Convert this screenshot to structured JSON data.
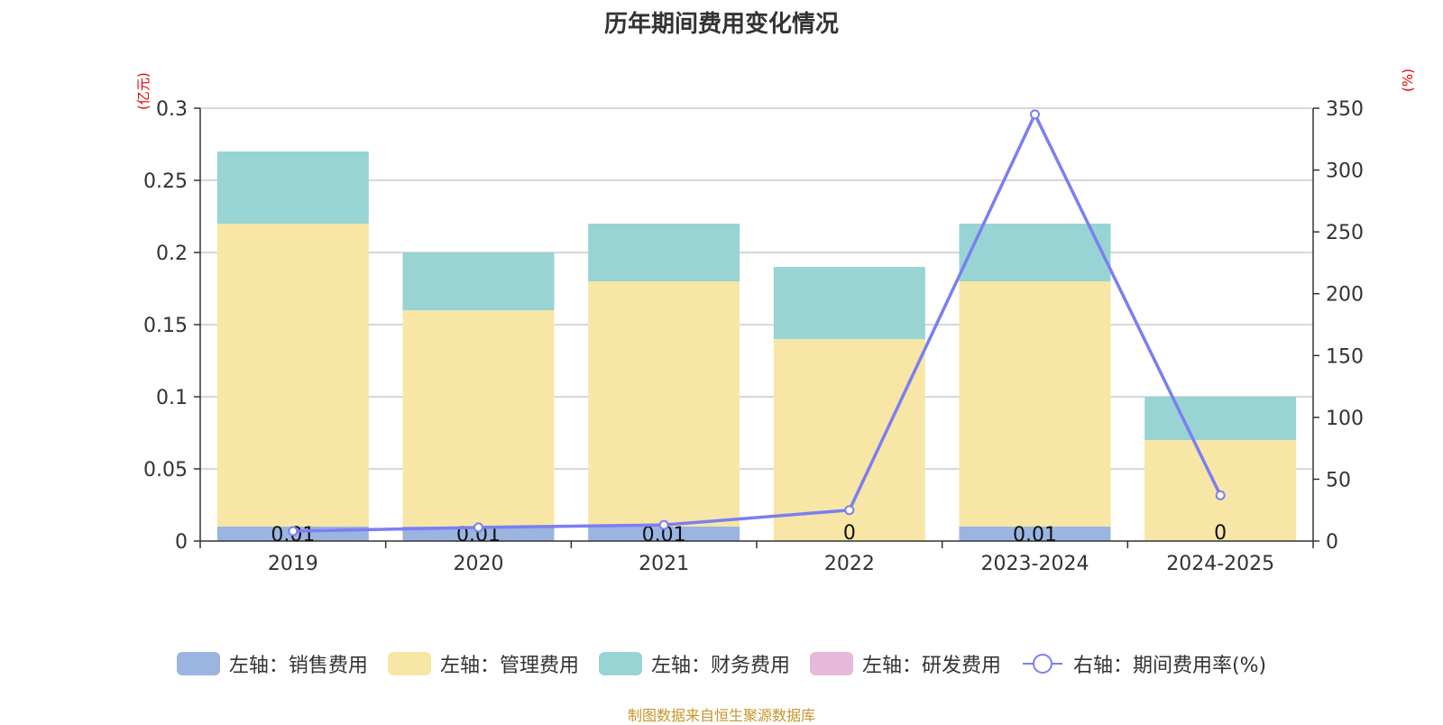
{
  "chart_data": {
    "type": "bar",
    "title": "历年期间费用变化情况",
    "categories": [
      "2019",
      "2020",
      "2021",
      "2022",
      "2023-2024",
      "2024-2025"
    ],
    "left_axis": {
      "unit": "(亿元)",
      "ylim": [
        0,
        0.3
      ],
      "ticks": [
        "0",
        "0.05",
        "0.1",
        "0.15",
        "0.2",
        "0.25",
        "0.3"
      ]
    },
    "right_axis": {
      "unit": "(%)",
      "ylim": [
        0,
        350
      ],
      "ticks": [
        "0",
        "50",
        "100",
        "150",
        "200",
        "250",
        "300",
        "350"
      ]
    },
    "stacked": true,
    "series": [
      {
        "name": "左轴：销售费用",
        "color": "#9bb4e0",
        "values": [
          0.01,
          0.01,
          0.01,
          0,
          0.01,
          0
        ],
        "labels": [
          "0.01",
          "0.01",
          "0.01",
          "0",
          "0.01",
          "0"
        ]
      },
      {
        "name": "左轴：管理费用",
        "color": "#f7e6a6",
        "values": [
          0.21,
          0.15,
          0.17,
          0.14,
          0.17,
          0.07
        ]
      },
      {
        "name": "左轴：财务费用",
        "color": "#98d4d4",
        "values": [
          0.05,
          0.04,
          0.04,
          0.05,
          0.04,
          0.03
        ]
      },
      {
        "name": "左轴：研发费用",
        "color": "#e6b8dc",
        "values": [
          0,
          0,
          0,
          0,
          0,
          0
        ]
      }
    ],
    "line_series": {
      "name": "右轴：期间费用率(%)",
      "color": "#7b7ff0",
      "values": [
        8,
        11,
        13,
        25,
        345,
        37
      ]
    },
    "grid": true,
    "legend_position": "bottom"
  },
  "source": "制图数据来自恒生聚源数据库"
}
